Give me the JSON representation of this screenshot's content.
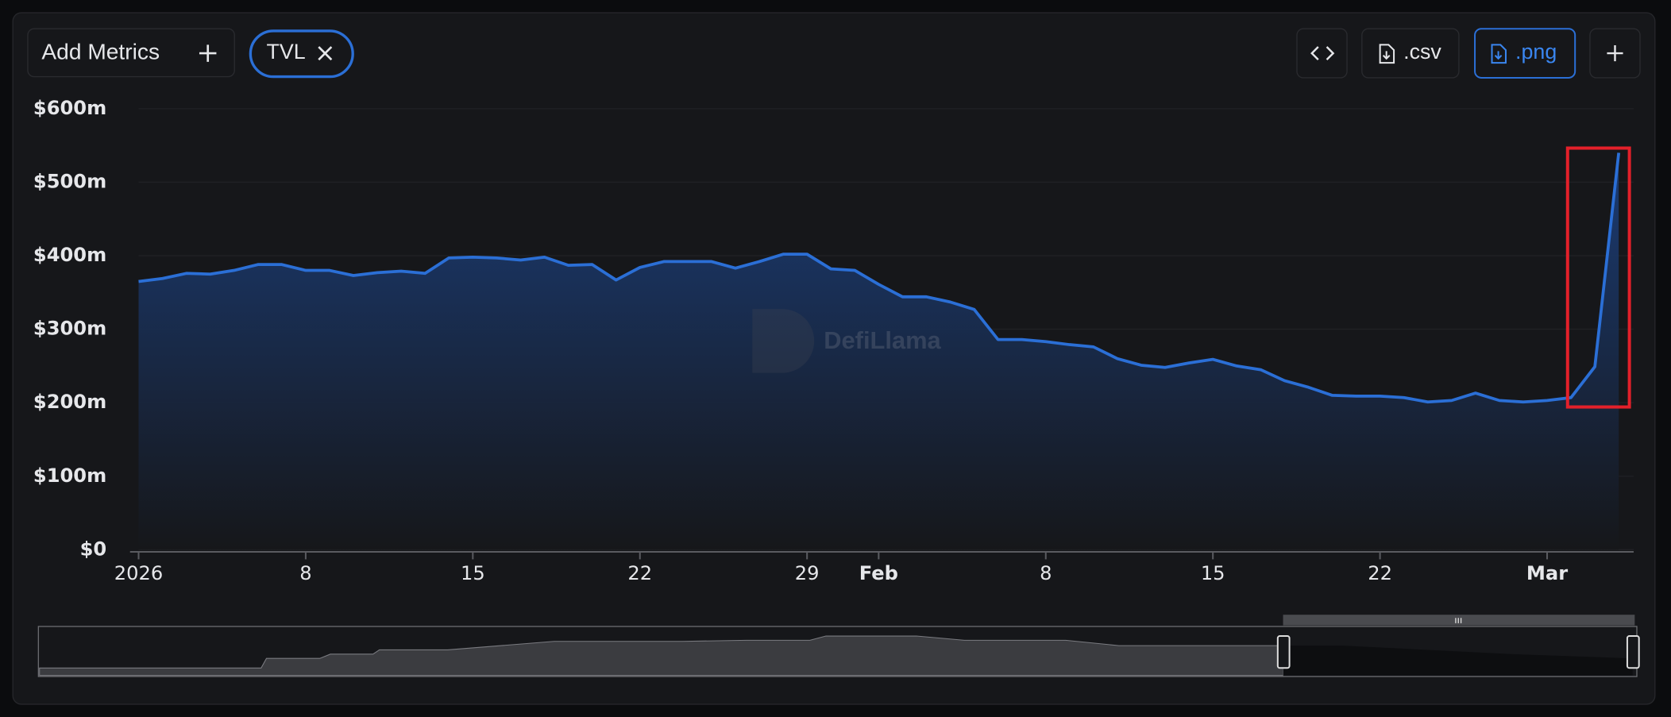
{
  "toolbar": {
    "add_metrics": "Add Metrics",
    "metric": "TVL",
    "csv": ".csv",
    "png": ".png"
  },
  "chart_data": {
    "type": "area",
    "watermark": "DefiLlama",
    "x": [
      "2026-01-01",
      "2026-01-02",
      "2026-01-03",
      "2026-01-04",
      "2026-01-05",
      "2026-01-06",
      "2026-01-07",
      "2026-01-08",
      "2026-01-09",
      "2026-01-10",
      "2026-01-11",
      "2026-01-12",
      "2026-01-13",
      "2026-01-14",
      "2026-01-15",
      "2026-01-16",
      "2026-01-17",
      "2026-01-18",
      "2026-01-19",
      "2026-01-20",
      "2026-01-21",
      "2026-01-22",
      "2026-01-23",
      "2026-01-24",
      "2026-01-25",
      "2026-01-26",
      "2026-01-27",
      "2026-01-28",
      "2026-01-29",
      "2026-01-30",
      "2026-01-31",
      "2026-02-01",
      "2026-02-02",
      "2026-02-03",
      "2026-02-04",
      "2026-02-05",
      "2026-02-06",
      "2026-02-07",
      "2026-02-08",
      "2026-02-09",
      "2026-02-10",
      "2026-02-11",
      "2026-02-12",
      "2026-02-13",
      "2026-02-14",
      "2026-02-15",
      "2026-02-16",
      "2026-02-17",
      "2026-02-18",
      "2026-02-19",
      "2026-02-20",
      "2026-02-21",
      "2026-02-22",
      "2026-02-23",
      "2026-02-24",
      "2026-02-25",
      "2026-02-26",
      "2026-02-27",
      "2026-02-28",
      "2026-03-01",
      "2026-03-02",
      "2026-03-03",
      "2026-03-04"
    ],
    "series": [
      {
        "name": "TVL",
        "color": "#2b6fd6",
        "values": [
          365,
          369,
          376,
          375,
          380,
          388,
          388,
          380,
          380,
          373,
          377,
          379,
          376,
          397,
          398,
          397,
          394,
          398,
          387,
          388,
          367,
          384,
          392,
          392,
          392,
          383,
          392,
          402,
          402,
          382,
          380,
          361,
          344,
          344,
          337,
          327,
          286,
          286,
          283,
          279,
          276,
          260,
          251,
          248,
          254,
          259,
          250,
          245,
          230,
          221,
          210,
          209,
          209,
          207,
          201,
          203,
          213,
          203,
          201,
          203,
          207,
          249,
          540
        ]
      }
    ],
    "xlim": [
      "2026-01-01",
      "2026-03-04"
    ],
    "xticks": [
      {
        "value": "2026-01-01",
        "label": "2026"
      },
      {
        "value": "2026-01-08",
        "label": "8"
      },
      {
        "value": "2026-01-15",
        "label": "15"
      },
      {
        "value": "2026-01-22",
        "label": "22"
      },
      {
        "value": "2026-01-29",
        "label": "29"
      },
      {
        "value": "2026-02-01",
        "label": "Feb"
      },
      {
        "value": "2026-02-08",
        "label": "8"
      },
      {
        "value": "2026-02-15",
        "label": "15"
      },
      {
        "value": "2026-02-22",
        "label": "22"
      },
      {
        "value": "2026-03-01",
        "label": "Mar"
      }
    ],
    "ylim": [
      0,
      600
    ],
    "yticks": [
      {
        "value": 0,
        "label": "$0"
      },
      {
        "value": 100,
        "label": "$100m"
      },
      {
        "value": 200,
        "label": "$200m"
      },
      {
        "value": 300,
        "label": "$300m"
      },
      {
        "value": 400,
        "label": "$400m"
      },
      {
        "value": 500,
        "label": "$500m"
      },
      {
        "value": 600,
        "label": "$600m"
      }
    ],
    "grid": true
  }
}
